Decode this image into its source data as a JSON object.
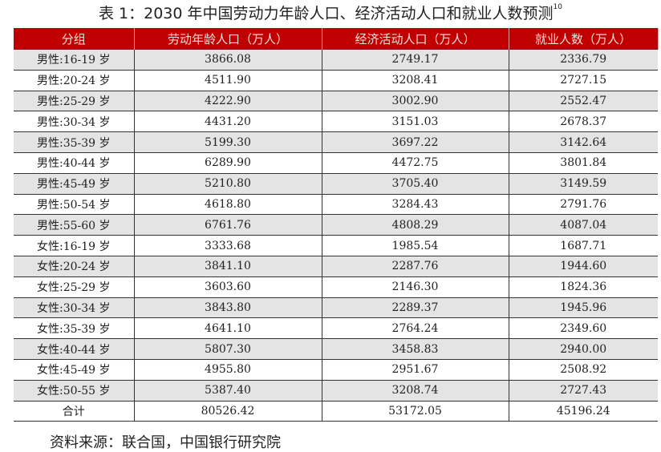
{
  "title": "表 1：2030 年中国劳动力年龄人口、经济活动人口和就业人数预测",
  "title_footnote": "10",
  "table": {
    "headers": [
      "分组",
      "劳动年龄人口（万人）",
      "经济活动人口（万人）",
      "就业人数（万人）"
    ],
    "rows": [
      [
        "男性:16-19 岁",
        "3866.08",
        "2749.17",
        "2336.79"
      ],
      [
        "男性:20-24 岁",
        "4511.90",
        "3208.41",
        "2727.15"
      ],
      [
        "男性:25-29 岁",
        "4222.90",
        "3002.90",
        "2552.47"
      ],
      [
        "男性:30-34 岁",
        "4431.20",
        "3151.03",
        "2678.37"
      ],
      [
        "男性:35-39 岁",
        "5199.30",
        "3697.22",
        "3142.64"
      ],
      [
        "男性:40-44 岁",
        "6289.90",
        "4472.75",
        "3801.84"
      ],
      [
        "男性:45-49 岁",
        "5210.80",
        "3705.40",
        "3149.59"
      ],
      [
        "男性:50-54 岁",
        "4618.80",
        "3284.43",
        "2791.76"
      ],
      [
        "男性:55-60 岁",
        "6761.76",
        "4808.29",
        "4087.04"
      ],
      [
        "女性:16-19 岁",
        "3333.68",
        "1985.54",
        "1687.71"
      ],
      [
        "女性:20-24 岁",
        "3841.10",
        "2287.76",
        "1944.60"
      ],
      [
        "女性:25-29 岁",
        "3603.60",
        "2146.30",
        "1824.36"
      ],
      [
        "女性:30-34 岁",
        "3843.80",
        "2289.37",
        "1945.96"
      ],
      [
        "女性:35-39 岁",
        "4641.10",
        "2764.24",
        "2349.60"
      ],
      [
        "女性:40-44 岁",
        "5807.30",
        "3458.83",
        "2940.00"
      ],
      [
        "女性:45-49 岁",
        "4955.80",
        "2951.67",
        "2508.92"
      ],
      [
        "女性:50-55 岁",
        "5387.40",
        "3208.74",
        "2727.43"
      ]
    ],
    "total": [
      "合计",
      "80526.42",
      "53172.05",
      "45196.24"
    ]
  },
  "source": "资料来源：联合国，中国银行研究院",
  "colors": {
    "header_bg": "#c00000",
    "stripe": "#e4e4e4"
  }
}
